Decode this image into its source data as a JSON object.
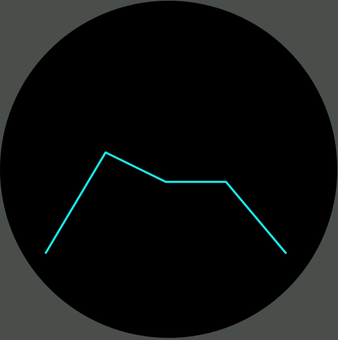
{
  "colors": {
    "background": "#4a4e4b",
    "face": "#000000",
    "trace": "#1de8e8"
  },
  "chart_data": {
    "type": "line",
    "title": "",
    "xlabel": "",
    "ylabel": "",
    "grid": false,
    "x": [
      0,
      1,
      2,
      3,
      4
    ],
    "series": [
      {
        "values": [
          1,
          2.2,
          1.85,
          1.85,
          1
        ]
      }
    ],
    "xlim": [
      0,
      4
    ],
    "ylim": [
      0,
      4
    ]
  }
}
